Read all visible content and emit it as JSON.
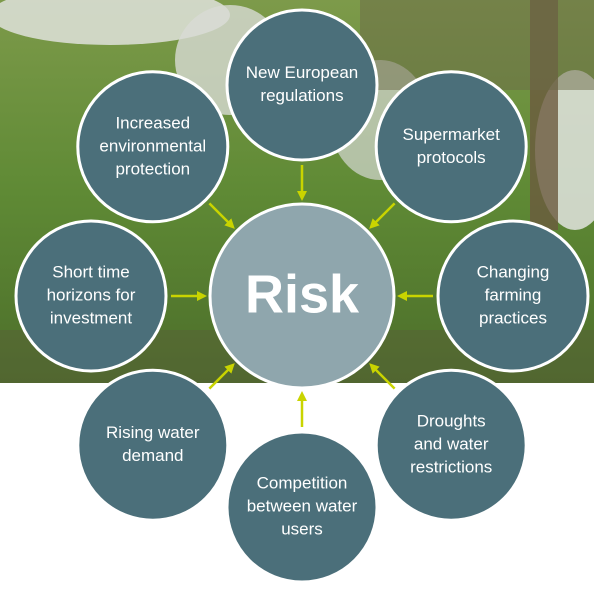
{
  "center": {
    "label": "Risk"
  },
  "nodes": [
    {
      "lines": [
        "New European",
        "regulations"
      ]
    },
    {
      "lines": [
        "Supermarket",
        "protocols"
      ]
    },
    {
      "lines": [
        "Changing",
        "farming",
        "practices"
      ]
    },
    {
      "lines": [
        "Droughts",
        "and water",
        "restrictions"
      ]
    },
    {
      "lines": [
        "Competition",
        "between water",
        "users"
      ]
    },
    {
      "lines": [
        "Rising water",
        "demand"
      ]
    },
    {
      "lines": [
        "Short time",
        "horizons for",
        "investment"
      ]
    },
    {
      "lines": [
        "Increased",
        "environmental",
        "protection"
      ]
    }
  ]
}
